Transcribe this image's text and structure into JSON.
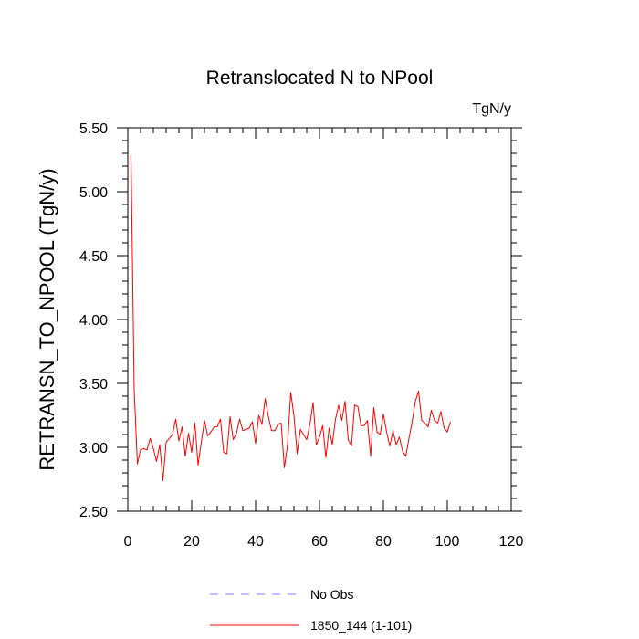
{
  "chart_data": {
    "type": "line",
    "title": "Retranslocated N to NPool",
    "units_label": "TgN/y",
    "xlabel": "",
    "ylabel": "RETRANSN_TO_NPOOL  (TgN/y)",
    "xlim": [
      0,
      120
    ],
    "ylim": [
      2.5,
      5.5
    ],
    "x_ticks": [
      0,
      20,
      40,
      60,
      80,
      100,
      120
    ],
    "x_tick_labels": [
      "0",
      "20",
      "40",
      "60",
      "80",
      "100",
      "120"
    ],
    "y_ticks": [
      2.5,
      3.0,
      3.5,
      4.0,
      4.5,
      5.0,
      5.5
    ],
    "y_tick_labels": [
      "2.50",
      "3.00",
      "3.50",
      "4.00",
      "4.50",
      "5.00",
      "5.50"
    ],
    "series": [
      {
        "name": "1850_144 (1-101)",
        "color": "#ff0000",
        "x": [
          1,
          2,
          3,
          4,
          5,
          6,
          7,
          8,
          9,
          10,
          11,
          12,
          13,
          14,
          15,
          16,
          17,
          18,
          19,
          20,
          21,
          22,
          23,
          24,
          25,
          26,
          27,
          28,
          29,
          30,
          31,
          32,
          33,
          34,
          35,
          36,
          37,
          38,
          39,
          40,
          41,
          42,
          43,
          44,
          45,
          46,
          47,
          48,
          49,
          50,
          51,
          52,
          53,
          54,
          55,
          56,
          57,
          58,
          59,
          60,
          61,
          62,
          63,
          64,
          65,
          66,
          67,
          68,
          69,
          70,
          71,
          72,
          73,
          74,
          75,
          76,
          77,
          78,
          79,
          80,
          81,
          82,
          83,
          84,
          85,
          86,
          87,
          88,
          89,
          90,
          91,
          92,
          93,
          94,
          95,
          96,
          97,
          98,
          99,
          100,
          101
        ],
        "values": [
          5.29,
          3.45,
          2.87,
          2.98,
          2.99,
          2.98,
          3.07,
          2.99,
          2.89,
          3.02,
          2.74,
          3.04,
          3.07,
          3.1,
          3.22,
          3.05,
          3.16,
          2.93,
          3.11,
          2.96,
          3.19,
          2.86,
          3.04,
          3.21,
          3.09,
          3.12,
          3.16,
          3.16,
          3.22,
          2.96,
          2.95,
          3.24,
          3.06,
          3.11,
          3.22,
          3.13,
          3.14,
          3.15,
          3.2,
          3.03,
          3.25,
          3.18,
          3.38,
          3.24,
          3.13,
          3.13,
          3.18,
          3.19,
          2.84,
          3.02,
          3.43,
          3.25,
          2.95,
          3.14,
          3.1,
          3.06,
          3.18,
          3.35,
          3.02,
          3.08,
          3.17,
          2.92,
          3.15,
          3.02,
          3.22,
          3.33,
          3.21,
          3.36,
          3.06,
          3.01,
          3.33,
          3.32,
          3.17,
          3.17,
          3.21,
          2.93,
          3.31,
          3.12,
          3.1,
          3.26,
          3.12,
          3.01,
          3.13,
          3.02,
          3.08,
          2.97,
          2.93,
          3.07,
          3.2,
          3.36,
          3.44,
          3.21,
          3.19,
          3.16,
          3.29,
          3.21,
          3.19,
          3.28,
          3.15,
          3.12,
          3.2
        ]
      }
    ],
    "legend": {
      "placement": "bottom-center",
      "entries": [
        {
          "label": "No Obs",
          "color": "#8080ff",
          "style": "dashed"
        },
        {
          "label": "1850_144 (1-101)",
          "color": "#ff0000",
          "style": "solid"
        }
      ]
    }
  }
}
